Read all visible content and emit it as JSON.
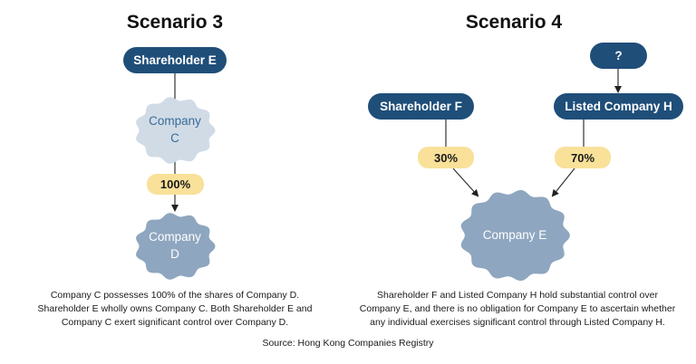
{
  "scenario3": {
    "title": "Scenario 3",
    "shareholder_e": "Shareholder E",
    "company_c": {
      "line1": "Company",
      "line2": "C"
    },
    "pct_100": "100%",
    "company_d": {
      "line1": "Company",
      "line2": "D"
    },
    "caption": [
      "Company C possesses 100% of the shares of Company D.",
      "Shareholder E wholly owns Company C. Both Shareholder E and",
      "Company C exert significant control over Company D."
    ]
  },
  "scenario4": {
    "title": "Scenario 4",
    "unknown": "?",
    "shareholder_f": "Shareholder F",
    "listed_company_h": "Listed Company H",
    "pct_30": "30%",
    "pct_70": "70%",
    "company_e": "Company E",
    "caption": [
      "Shareholder F and Listed Company H hold substantial control over",
      "Company E, and there is no obligation for Company E to ascertain whether",
      "any individual exercises significant control through Listed Company H."
    ]
  },
  "source": "Source: Hong Kong Companies Registry",
  "colors": {
    "navy": "#1f4e79",
    "yellow": "#f9e19a",
    "light_blob": "#d0dbe6",
    "mid_blob": "#8ea6bf",
    "text_blue": "#3a6c98"
  }
}
